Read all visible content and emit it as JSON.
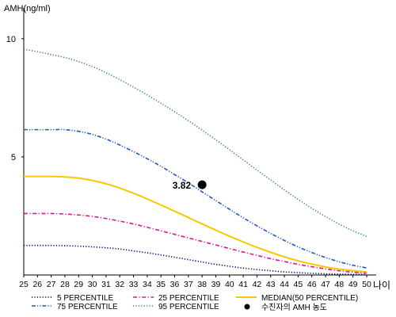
{
  "chart_data": {
    "type": "line",
    "ylabel": "AMH(ng/ml)",
    "xlabel": "나이",
    "x": [
      25,
      26,
      27,
      28,
      29,
      30,
      31,
      32,
      33,
      34,
      35,
      36,
      37,
      38,
      39,
      40,
      41,
      42,
      43,
      44,
      45,
      46,
      47,
      48,
      49,
      50
    ],
    "xlim": [
      25,
      50
    ],
    "ylim": [
      0,
      11
    ],
    "yticks": [
      5,
      10
    ],
    "grid": false,
    "legend_position": "bottom",
    "series": [
      {
        "name": "5 PERCENTILE",
        "color": "#000080",
        "dash": "dotted",
        "values": [
          1.25,
          1.25,
          1.25,
          1.24,
          1.22,
          1.19,
          1.15,
          1.1,
          1.02,
          0.94,
          0.85,
          0.75,
          0.65,
          0.55,
          0.45,
          0.37,
          0.29,
          0.23,
          0.18,
          0.13,
          0.1,
          0.07,
          0.05,
          0.04,
          0.03,
          0.02
        ]
      },
      {
        "name": "25 PERCENTILE",
        "color": "#e0148c",
        "dash": "dashdot",
        "values": [
          2.6,
          2.6,
          2.6,
          2.58,
          2.54,
          2.48,
          2.39,
          2.28,
          2.16,
          2.02,
          1.87,
          1.72,
          1.57,
          1.42,
          1.27,
          1.12,
          0.97,
          0.83,
          0.69,
          0.57,
          0.45,
          0.35,
          0.26,
          0.18,
          0.12,
          0.08
        ]
      },
      {
        "name": "75 PERCENTILE",
        "color": "#2255cc",
        "dash": "dashdotdot",
        "values": [
          6.15,
          6.15,
          6.15,
          6.15,
          6.08,
          5.95,
          5.75,
          5.5,
          5.22,
          4.92,
          4.6,
          4.25,
          3.9,
          3.52,
          3.15,
          2.78,
          2.42,
          2.08,
          1.76,
          1.46,
          1.19,
          0.95,
          0.74,
          0.56,
          0.41,
          0.3
        ]
      },
      {
        "name": "95 PERCENTILE",
        "color": "#2e8b57",
        "dash": "dotted",
        "values": [
          9.55,
          9.45,
          9.33,
          9.2,
          9.03,
          8.82,
          8.56,
          8.27,
          7.95,
          7.62,
          7.27,
          6.91,
          6.53,
          6.13,
          5.72,
          5.3,
          4.87,
          4.44,
          4.02,
          3.6,
          3.2,
          2.82,
          2.47,
          2.15,
          1.87,
          1.63
        ]
      },
      {
        "name": "MEDIAN(50 PERCENTILE)",
        "color": "#f5c800",
        "dash": "solid",
        "values": [
          4.17,
          4.17,
          4.17,
          4.15,
          4.1,
          4.0,
          3.86,
          3.68,
          3.46,
          3.22,
          2.96,
          2.7,
          2.43,
          2.16,
          1.9,
          1.64,
          1.4,
          1.17,
          0.96,
          0.77,
          0.6,
          0.46,
          0.34,
          0.25,
          0.18,
          0.13
        ]
      }
    ],
    "points": [
      {
        "name": "수진자의 AMH 농도",
        "x": 38,
        "y": 3.82,
        "label": "3.82",
        "color": "#000000"
      }
    ]
  }
}
